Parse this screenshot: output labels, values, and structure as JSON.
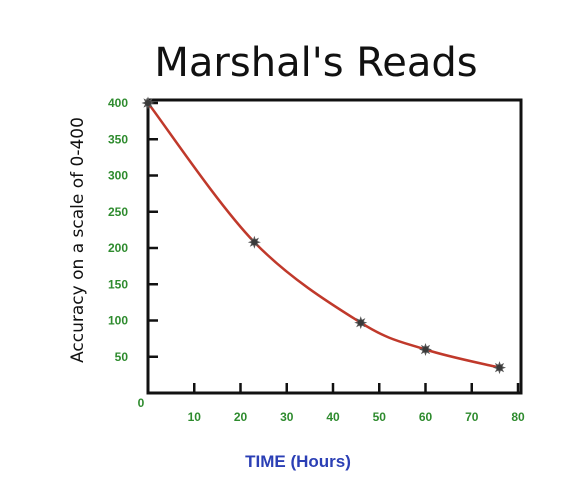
{
  "chart_data": {
    "type": "line",
    "title": "Marshal's Reads",
    "xlabel": "TIME (Hours)",
    "ylabel": "Accuracy on a scale of  0-400",
    "x": [
      0,
      23,
      46,
      60,
      76
    ],
    "series": [
      {
        "values": [
          400,
          208,
          97,
          60,
          35
        ]
      }
    ],
    "xlim": [
      0,
      80
    ],
    "ylim": [
      0,
      400
    ],
    "xticks": [
      "0",
      "10",
      "20",
      "30",
      "40",
      "50",
      "60",
      "70",
      "80"
    ],
    "yticks": [
      "50",
      "100",
      "150",
      "200",
      "250",
      "300",
      "350",
      "400"
    ],
    "grid": false,
    "curve": "smooth",
    "colors": {
      "line": "#c0392b",
      "marker": "#555555",
      "tick_label": "#2e8b2e",
      "x_title": "#2b3fb5",
      "axis": "#111111"
    }
  }
}
